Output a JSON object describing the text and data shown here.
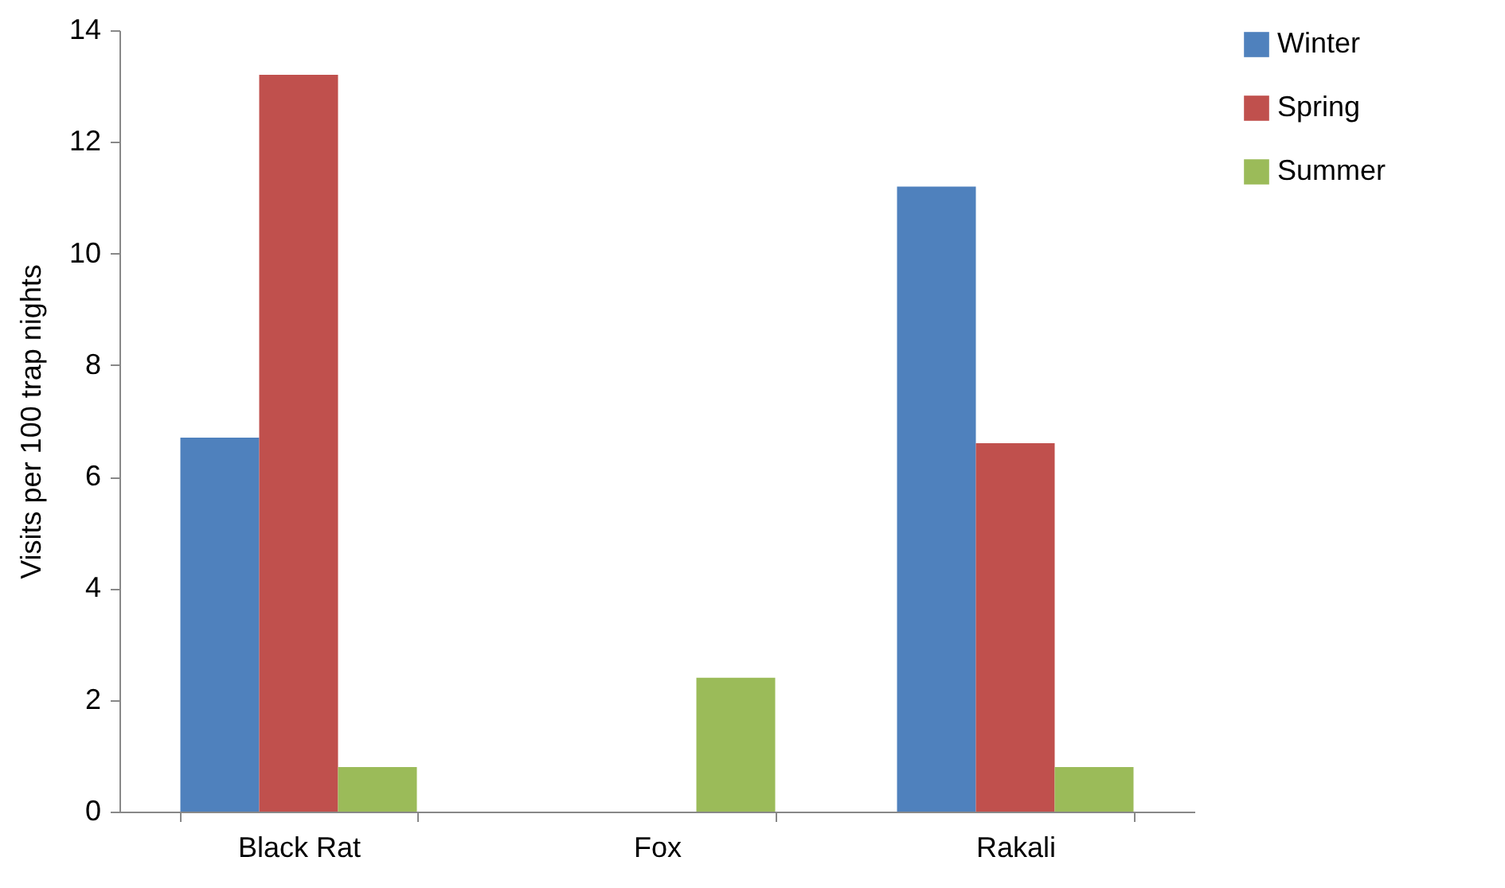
{
  "chart_data": {
    "type": "bar",
    "ylabel": "Visits per 100 trap nights",
    "categories": [
      "Black Rat",
      "Fox",
      "Rakali"
    ],
    "series": [
      {
        "name": "Winter",
        "color": "#4f81bd",
        "values": [
          6.7,
          0,
          11.2
        ]
      },
      {
        "name": "Spring",
        "color": "#c0504d",
        "values": [
          13.2,
          0,
          6.6
        ]
      },
      {
        "name": "Summer",
        "color": "#9bbb59",
        "values": [
          0.8,
          2.4,
          0.8
        ]
      }
    ],
    "ylim": [
      0,
      14
    ],
    "yticks": [
      0,
      2,
      4,
      6,
      8,
      10,
      12,
      14
    ],
    "grid": false,
    "legend": "right"
  }
}
